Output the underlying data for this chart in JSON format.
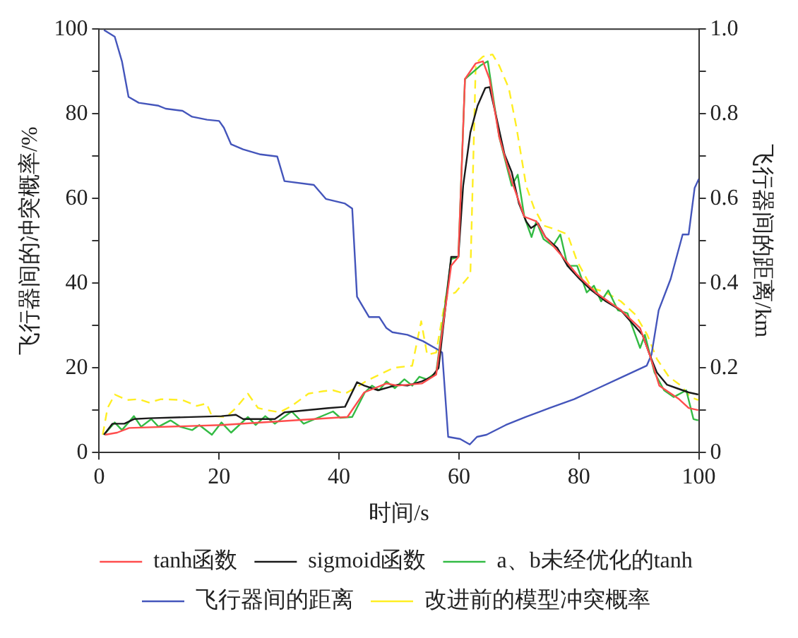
{
  "chart_data": {
    "type": "line",
    "xlabel": "时间/s",
    "ylabel": "飞行器间的冲突概率/%",
    "y2label": "飞行器间的距离/km",
    "xlim": [
      0,
      100
    ],
    "xticks": [
      0,
      20,
      40,
      60,
      80,
      100
    ],
    "ylim": [
      0,
      100
    ],
    "yticks": [
      0,
      {
        "value": 10,
        "label": null
      },
      20,
      {
        "value": 30,
        "label": null
      },
      40,
      {
        "value": 50,
        "label": null
      },
      60,
      {
        "value": 70,
        "label": null
      },
      80,
      {
        "value": 90,
        "label": null
      },
      100
    ],
    "y2lim": [
      0,
      1
    ],
    "y2ticks": [
      0,
      {
        "value": 0.1,
        "label": null
      },
      0.2,
      {
        "value": 0.3,
        "label": null
      },
      0.4,
      {
        "value": 0.5,
        "label": null
      },
      0.6,
      {
        "value": 0.7,
        "label": null
      },
      0.8,
      {
        "value": 0.9,
        "label": null
      },
      {
        "value": 1,
        "label": "1.0"
      }
    ],
    "grid": false,
    "legend": "bottom",
    "marker": "none",
    "line_style": "solid",
    "series": [
      {
        "name": "tanh函数",
        "color": "#ff4d4d",
        "x": [
          1,
          3,
          5,
          20.4,
          41.4,
          44.2,
          47.9,
          49.8,
          53.8,
          56.2,
          58.7,
          59.9,
          61,
          62.8,
          64,
          65.1,
          66.7,
          68.8,
          70.9,
          72.9,
          74.4,
          77.3,
          79.7,
          82.8,
          87,
          90.2,
          91.8,
          93.4,
          96.7,
          98.3,
          99.9
        ],
        "values": [
          4.2,
          4.7,
          5.8,
          6.5,
          8.4,
          14.2,
          16.3,
          15.8,
          16.3,
          18.4,
          44.1,
          46.2,
          88.2,
          91.9,
          92.4,
          88.2,
          74.6,
          64.1,
          55.7,
          54.6,
          50.9,
          46.2,
          42,
          37.8,
          33.6,
          29.4,
          23.1,
          15.8,
          12.6,
          10.5,
          10
        ]
      },
      {
        "name": "sigmoid函数",
        "color": "#1a1a1a",
        "x": [
          0.8,
          2.2,
          4.2,
          5.8,
          8.3,
          20.4,
          22.8,
          24,
          29.3,
          30.9,
          38.2,
          41,
          43,
          44.2,
          46.5,
          49.8,
          51.4,
          53.8,
          55.5,
          56.6,
          58.7,
          59.9,
          60.7,
          61.9,
          63.1,
          64.4,
          65.1,
          66.3,
          67.6,
          68.8,
          70,
          71.2,
          72,
          73.2,
          74.4,
          76.4,
          78.1,
          80.1,
          82.1,
          84.5,
          87,
          88.6,
          90.6,
          91.8,
          93,
          94.7,
          96.3,
          98.3,
          99.9
        ],
        "values": [
          4.2,
          6.8,
          6.8,
          7.9,
          8.1,
          8.6,
          8.9,
          7.9,
          7.9,
          9.5,
          10.5,
          10.8,
          16.6,
          15.8,
          14.7,
          16,
          15.8,
          16.8,
          17.9,
          20,
          46.2,
          46.2,
          63,
          75.6,
          81.9,
          86.1,
          86.3,
          78.8,
          70.4,
          66.2,
          58.8,
          54.6,
          53,
          54.1,
          50.9,
          48.3,
          44.1,
          41,
          38.3,
          35.7,
          33.6,
          31,
          27.8,
          23.1,
          18.9,
          16,
          15.2,
          14.2,
          13.7
        ]
      },
      {
        "name": "a、b未经优化的tanh",
        "color": "#33bb44",
        "x": [
          0.8,
          2.6,
          3.8,
          5.8,
          7,
          8.7,
          9.9,
          11.9,
          13.5,
          15.5,
          16.7,
          18.8,
          20.4,
          22,
          24.8,
          26.1,
          27.7,
          29.3,
          32.1,
          34.1,
          39,
          40.2,
          42.2,
          44.3,
          45.5,
          46.7,
          47.9,
          49.3,
          50.9,
          52.2,
          53.4,
          54.6,
          56.2,
          58.7,
          59.9,
          61,
          62.3,
          63.6,
          64.8,
          66.7,
          68.8,
          69.8,
          70.9,
          72.1,
          72.9,
          74.1,
          75.7,
          76.9,
          78.1,
          79.7,
          81.3,
          82.5,
          83.7,
          84.9,
          86.5,
          88.1,
          90.2,
          91,
          92.6,
          94.2,
          95.8,
          97.9,
          99.1,
          99.9
        ],
        "values": [
          4.2,
          7.1,
          5.3,
          8.6,
          6.1,
          7.9,
          6.1,
          7.6,
          6.1,
          5.3,
          6.5,
          4.2,
          7.1,
          4.7,
          8.4,
          6.5,
          8.6,
          6.8,
          9.7,
          6.8,
          9.7,
          8.2,
          8.4,
          14.2,
          15.8,
          14.7,
          16.8,
          15.2,
          17.3,
          15.8,
          17.9,
          17.3,
          18.9,
          45.7,
          46.2,
          88.2,
          89.8,
          91.4,
          92.4,
          74.6,
          63,
          65.6,
          55.7,
          50.9,
          54.6,
          50.4,
          48.8,
          51.5,
          44.1,
          44.1,
          37.8,
          39.4,
          35.7,
          38.3,
          33.6,
          32.9,
          24.7,
          27.8,
          18.9,
          14.7,
          13.1,
          14.7,
          7.9,
          7.6
        ]
      },
      {
        "name": "飞行器间的距离",
        "color": "#4455bb",
        "axis": "y2",
        "x": [
          0.8,
          2.6,
          3.8,
          4.9,
          6.6,
          9.9,
          11.1,
          13.9,
          15.5,
          18,
          20,
          20.8,
          22,
          24,
          26.9,
          29.7,
          30.9,
          35.8,
          37.8,
          41,
          42.2,
          43,
          45,
          46.7,
          47.9,
          48.9,
          51.4,
          54,
          56.6,
          57.2,
          58.2,
          60.2,
          61.8,
          63,
          64.6,
          67.8,
          71.1,
          75.1,
          79.2,
          83.2,
          87.3,
          91.3,
          92.1,
          93.3,
          95.3,
          97.3,
          98.3,
          99.3,
          100
        ],
        "values": [
          0.998,
          0.982,
          0.924,
          0.84,
          0.826,
          0.819,
          0.812,
          0.807,
          0.793,
          0.786,
          0.783,
          0.767,
          0.728,
          0.716,
          0.704,
          0.699,
          0.641,
          0.632,
          0.599,
          0.588,
          0.576,
          0.368,
          0.32,
          0.32,
          0.294,
          0.284,
          0.278,
          0.263,
          0.242,
          0.236,
          0.037,
          0.032,
          0.019,
          0.037,
          0.042,
          0.065,
          0.084,
          0.105,
          0.126,
          0.152,
          0.179,
          0.205,
          0.231,
          0.336,
          0.41,
          0.515,
          0.515,
          0.625,
          0.646
        ]
      },
      {
        "name": "改进前的模型冲突概率",
        "color": "#ffee22",
        "line_style": "dashed",
        "x": [
          0.6,
          1.4,
          2.6,
          4.6,
          6.6,
          8.3,
          10.3,
          13.9,
          16.3,
          17.9,
          18.8,
          21.2,
          22.8,
          24.8,
          26.5,
          28.1,
          30.1,
          32.1,
          34.9,
          37.4,
          39,
          41,
          43,
          44.7,
          46.3,
          49.1,
          52.2,
          53.7,
          54.7,
          56.2,
          57.8,
          59.4,
          61.9,
          62.8,
          64,
          65.6,
          66.7,
          68.3,
          69.6,
          71.2,
          72.5,
          74.1,
          76.1,
          78.1,
          79.7,
          82.1,
          84.5,
          87,
          89.4,
          91.4,
          93,
          95,
          97,
          98.6,
          99.9
        ],
        "values": [
          4.2,
          10.5,
          13.7,
          12.4,
          12.6,
          11.8,
          12.6,
          12.4,
          11,
          11.6,
          8.6,
          8.4,
          10.5,
          13.9,
          10.5,
          10,
          9.5,
          11,
          13.9,
          14.5,
          14.7,
          13.9,
          15.5,
          17,
          18.1,
          20,
          20.5,
          31,
          23.1,
          23.6,
          36.8,
          37.8,
          42,
          91.9,
          93.5,
          94,
          91.4,
          86.1,
          76.7,
          63,
          57.8,
          53.6,
          52.7,
          51.5,
          45.2,
          38.9,
          37.8,
          35.7,
          32.6,
          27.8,
          22.1,
          17.9,
          15.8,
          13.1,
          12.4
        ]
      }
    ]
  }
}
